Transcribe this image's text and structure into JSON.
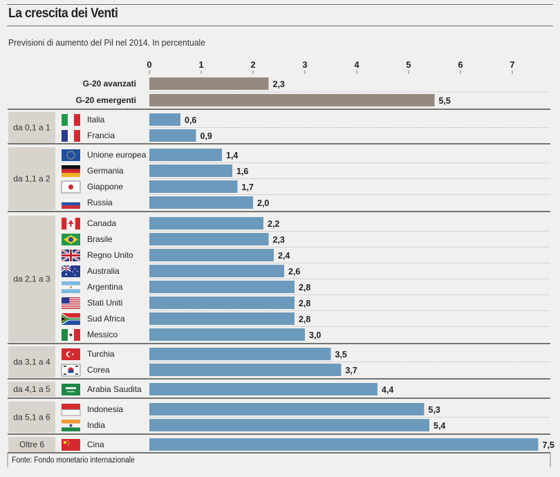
{
  "header": {
    "title": "La crescita dei Venti",
    "subtitle": "Previsioni di aumento del Pil nel 2014. In percentuale"
  },
  "source": "Fonte: Fondo monetario internazionale",
  "colors": {
    "aggregate_bar": "#968a7e",
    "country_bar": "#6b9abc",
    "group_box": "#d8d3cc",
    "background": "#f0f0ef"
  },
  "chart_data": {
    "type": "bar",
    "orientation": "horizontal",
    "title": "La crescita dei Venti",
    "subtitle": "Previsioni di aumento del Pil nel 2014. In percentuale",
    "xlabel": "",
    "ylabel": "",
    "xlim": [
      0,
      7.5
    ],
    "ticks": [
      0,
      1,
      2,
      3,
      4,
      5,
      6,
      7
    ],
    "tick_labels": [
      "0",
      "1",
      "2",
      "3",
      "4",
      "5",
      "6",
      "7"
    ],
    "grid": false,
    "aggregates": [
      {
        "name": "G-20 avanzati",
        "value": 2.3,
        "label": "2,3"
      },
      {
        "name": "G-20 emergenti",
        "value": 5.5,
        "label": "5,5"
      }
    ],
    "groups": [
      {
        "label": "da 0,1 a 1",
        "countries": [
          {
            "name": "Italia",
            "flag": "italy-flag",
            "value": 0.6,
            "label": "0,6"
          },
          {
            "name": "Francia",
            "flag": "france-flag",
            "value": 0.9,
            "label": "0,9"
          }
        ]
      },
      {
        "label": "da 1,1 a 2",
        "countries": [
          {
            "name": "Unione europea",
            "flag": "eu-flag",
            "value": 1.4,
            "label": "1,4"
          },
          {
            "name": "Germania",
            "flag": "germany-flag",
            "value": 1.6,
            "label": "1,6"
          },
          {
            "name": "Giappone",
            "flag": "japan-flag",
            "value": 1.7,
            "label": "1,7"
          },
          {
            "name": "Russia",
            "flag": "russia-flag",
            "value": 2.0,
            "label": "2,0"
          }
        ]
      },
      {
        "label": "da 2,1 a 3",
        "countries": [
          {
            "name": "Canada",
            "flag": "canada-flag",
            "value": 2.2,
            "label": "2,2"
          },
          {
            "name": "Brasile",
            "flag": "brazil-flag",
            "value": 2.3,
            "label": "2,3"
          },
          {
            "name": "Regno Unito",
            "flag": "uk-flag",
            "value": 2.4,
            "label": "2,4"
          },
          {
            "name": "Australia",
            "flag": "australia-flag",
            "value": 2.6,
            "label": "2,6"
          },
          {
            "name": "Argentina",
            "flag": "argentina-flag",
            "value": 2.8,
            "label": "2,8"
          },
          {
            "name": "Stati Uniti",
            "flag": "usa-flag",
            "value": 2.8,
            "label": "2,8"
          },
          {
            "name": "Sud Africa",
            "flag": "south-africa-flag",
            "value": 2.8,
            "label": "2,8"
          },
          {
            "name": "Messico",
            "flag": "mexico-flag",
            "value": 3.0,
            "label": "3,0"
          }
        ]
      },
      {
        "label": "da 3,1 a 4",
        "countries": [
          {
            "name": "Turchia",
            "flag": "turkey-flag",
            "value": 3.5,
            "label": "3,5"
          },
          {
            "name": "Corea",
            "flag": "korea-flag",
            "value": 3.7,
            "label": "3,7"
          }
        ]
      },
      {
        "label": "da 4,1 a 5",
        "countries": [
          {
            "name": "Arabia Saudita",
            "flag": "saudi-arabia-flag",
            "value": 4.4,
            "label": "4,4"
          }
        ]
      },
      {
        "label": "da 5,1 a 6",
        "countries": [
          {
            "name": "Indonesia",
            "flag": "indonesia-flag",
            "value": 5.3,
            "label": "5,3"
          },
          {
            "name": "India",
            "flag": "india-flag",
            "value": 5.4,
            "label": "5,4"
          }
        ]
      },
      {
        "label": "Oltre 6",
        "countries": [
          {
            "name": "Cina",
            "flag": "china-flag",
            "value": 7.5,
            "label": "7,5"
          }
        ]
      }
    ]
  }
}
